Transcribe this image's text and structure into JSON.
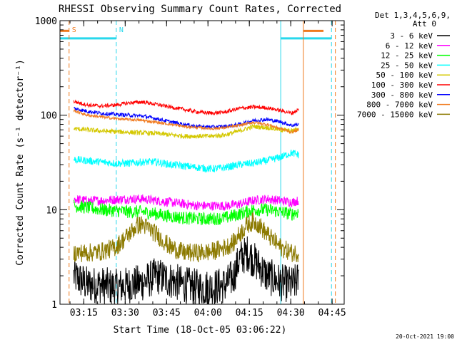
{
  "chart_data": {
    "type": "line",
    "title": "RHESSI Observing Summary Count Rates, Corrected",
    "xlabel": "Start Time (18-Oct-05 03:06:22)",
    "ylabel": "Corrected Count Rate (s⁻¹ detector⁻¹)",
    "y_scale": "log",
    "ylim": [
      1,
      1000
    ],
    "x_range_min": [
      0,
      103
    ],
    "x_ticks": [
      {
        "value": 8.63,
        "label": "03:15"
      },
      {
        "value": 23.63,
        "label": "03:30"
      },
      {
        "value": 38.63,
        "label": "03:45"
      },
      {
        "value": 53.63,
        "label": "04:00"
      },
      {
        "value": 68.63,
        "label": "04:15"
      },
      {
        "value": 83.63,
        "label": "04:30"
      },
      {
        "value": 98.63,
        "label": "04:45"
      }
    ],
    "y_ticks": [
      {
        "value": 1,
        "label": "1"
      },
      {
        "value": 10,
        "label": "10"
      },
      {
        "value": 100,
        "label": "100"
      },
      {
        "value": 1000,
        "label": "1000"
      }
    ],
    "legend_header": [
      "Det 1,3,4,5,6,9,",
      "Att 0"
    ],
    "legend_position": "right",
    "markers": [
      {
        "x": 3.3,
        "color": "#f07a1e",
        "style": "dashed",
        "label": "S",
        "label_color": "#f07a1e"
      },
      {
        "x": 88.2,
        "color": "#f07a1e",
        "style": "solid",
        "label": ""
      },
      {
        "x": 99.8,
        "color": "#f07a1e",
        "style": "dashed",
        "label": ""
      },
      {
        "x": 20.4,
        "color": "#28d8ec",
        "style": "dashed",
        "label": "N",
        "label_color": "#28d8ec"
      },
      {
        "x": 80.0,
        "color": "#28d8ec",
        "style": "solid",
        "label": ""
      },
      {
        "x": 98.4,
        "color": "#28d8ec",
        "style": "dashed",
        "label": ""
      }
    ],
    "bars": [
      {
        "x0": 0,
        "x1": 3.3,
        "y": 780,
        "color": "#f07a1e"
      },
      {
        "x0": 88.2,
        "x1": 95.5,
        "y": 780,
        "color": "#f07a1e"
      },
      {
        "x0": 0,
        "x1": 20.4,
        "y": 650,
        "color": "#28d8ec"
      },
      {
        "x0": 80.0,
        "x1": 98.4,
        "y": 650,
        "color": "#28d8ec"
      }
    ],
    "series": [
      {
        "name": "3 - 6 keV",
        "color": "#000000",
        "x": [
          5,
          10,
          15,
          20,
          25,
          30,
          35,
          40,
          45,
          50,
          55,
          60,
          63,
          65,
          68,
          70,
          75,
          80,
          84,
          86.5
        ],
        "y": [
          2.0,
          1.6,
          1.6,
          1.5,
          1.6,
          1.7,
          2.0,
          1.8,
          1.6,
          1.5,
          1.5,
          1.6,
          2.0,
          3.0,
          3.5,
          3.0,
          2.0,
          1.7,
          1.6,
          1.8
        ],
        "noise": 0.2
      },
      {
        "name": "6 - 12 keV",
        "color": "#ff00ff",
        "x": [
          5,
          10,
          15,
          20,
          25,
          30,
          35,
          40,
          45,
          50,
          55,
          60,
          65,
          70,
          75,
          80,
          84,
          86.5
        ],
        "y": [
          13,
          12.5,
          12.5,
          12.8,
          13,
          13,
          12.5,
          12,
          11.5,
          11,
          11,
          11,
          11.5,
          12.5,
          13,
          12.5,
          12,
          12.5
        ],
        "noise": 0.05
      },
      {
        "name": "12 - 25 keV",
        "color": "#00ff00",
        "x": [
          5,
          10,
          15,
          20,
          25,
          30,
          35,
          40,
          45,
          50,
          55,
          60,
          65,
          70,
          75,
          80,
          84,
          86.5
        ],
        "y": [
          11,
          10.5,
          10,
          9.8,
          9.5,
          9.5,
          9,
          8.5,
          8.2,
          8,
          8,
          8.2,
          9,
          10,
          10,
          9.5,
          9,
          9.5
        ],
        "noise": 0.07
      },
      {
        "name": "25 - 50 keV",
        "color": "#00ffff",
        "x": [
          5,
          10,
          15,
          20,
          25,
          30,
          35,
          40,
          45,
          50,
          55,
          60,
          65,
          70,
          75,
          80,
          84,
          86.5
        ],
        "y": [
          34,
          33,
          32,
          31,
          31,
          32,
          32,
          30,
          29,
          28,
          27,
          28,
          30,
          31,
          33,
          36,
          40,
          38
        ],
        "noise": 0.04
      },
      {
        "name": "50 - 100 keV",
        "color": "#d4c800",
        "x": [
          5,
          10,
          15,
          20,
          25,
          30,
          35,
          40,
          45,
          50,
          55,
          60,
          65,
          70,
          75,
          80,
          84,
          86.5
        ],
        "y": [
          72,
          70,
          68,
          67,
          66,
          65,
          64,
          62,
          60,
          60,
          60,
          62,
          68,
          76,
          74,
          70,
          68,
          72
        ],
        "noise": 0.025
      },
      {
        "name": "100 - 300 keV",
        "color": "#ff0000",
        "x": [
          5,
          10,
          15,
          20,
          25,
          30,
          35,
          40,
          45,
          50,
          55,
          60,
          65,
          70,
          75,
          80,
          84,
          86.5
        ],
        "y": [
          140,
          128,
          125,
          128,
          135,
          138,
          130,
          122,
          115,
          108,
          105,
          108,
          118,
          122,
          120,
          112,
          105,
          115
        ],
        "noise": 0.02
      },
      {
        "name": "300 - 800 keV",
        "color": "#0000ff",
        "x": [
          5,
          10,
          15,
          20,
          25,
          30,
          35,
          40,
          45,
          50,
          55,
          60,
          65,
          70,
          75,
          80,
          84,
          86.5
        ],
        "y": [
          118,
          110,
          105,
          102,
          100,
          98,
          92,
          85,
          80,
          76,
          75,
          76,
          80,
          88,
          90,
          85,
          78,
          80
        ],
        "noise": 0.02
      },
      {
        "name": "800 - 7000 keV",
        "color": "#f07a1e",
        "x": [
          5,
          10,
          15,
          20,
          25,
          30,
          35,
          40,
          45,
          50,
          55,
          60,
          65,
          70,
          75,
          80,
          84,
          86.5
        ],
        "y": [
          112,
          100,
          96,
          92,
          90,
          88,
          84,
          80,
          76,
          74,
          72,
          74,
          78,
          84,
          80,
          72,
          66,
          70
        ],
        "noise": 0.015
      },
      {
        "name": "7000 - 15000 keV",
        "color": "#8c7a00",
        "x": [
          5,
          10,
          15,
          20,
          22,
          25,
          28,
          30,
          35,
          40,
          45,
          50,
          55,
          60,
          63,
          65,
          68,
          70,
          72,
          75,
          80,
          84,
          86.5
        ],
        "y": [
          3.5,
          3.5,
          3.6,
          4.0,
          4.5,
          5.5,
          6.8,
          7.0,
          5.5,
          4.0,
          3.5,
          3.5,
          3.6,
          4.0,
          4.5,
          5.5,
          7.0,
          7.5,
          7.0,
          5.5,
          4.0,
          3.5,
          3.5
        ],
        "noise": 0.1
      }
    ]
  },
  "footer_date": "20-Oct-2021 19:00"
}
